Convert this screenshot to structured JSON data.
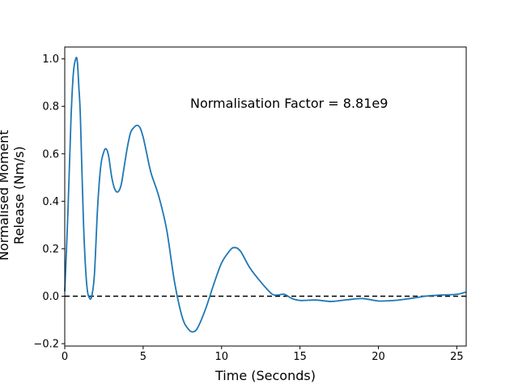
{
  "chart_data": {
    "type": "line",
    "xlabel": "Time (Seconds)",
    "ylabel_lines": [
      "Normalised Moment",
      "Release (Nm/s)"
    ],
    "annotation": "Normalisation Factor = 8.81e9",
    "xlim": [
      0,
      25.6
    ],
    "ylim": [
      -0.21,
      1.05
    ],
    "xticks": [
      0,
      5,
      10,
      15,
      20,
      25
    ],
    "xtick_labels": [
      "0",
      "5",
      "10",
      "15",
      "20",
      "25"
    ],
    "yticks": [
      -0.2,
      0.0,
      0.2,
      0.4,
      0.6,
      0.8,
      1.0
    ],
    "ytick_labels": [
      "−0.2",
      "0.0",
      "0.2",
      "0.4",
      "0.6",
      "0.8",
      "1.0"
    ],
    "grid": false,
    "reference_line": {
      "y": 0,
      "style": "dashed",
      "color": "#000000"
    },
    "series": [
      {
        "color": "#1f77b4",
        "x": [
          0,
          0.2,
          0.4,
          0.55,
          0.7,
          0.8,
          0.9,
          1.0,
          1.2,
          1.4,
          1.6,
          1.75,
          1.9,
          2.1,
          2.3,
          2.5,
          2.65,
          2.8,
          3.0,
          3.2,
          3.4,
          3.6,
          3.8,
          4.0,
          4.2,
          4.4,
          4.6,
          4.8,
          5.0,
          5.2,
          5.5,
          6.0,
          6.5,
          7.0,
          7.5,
          7.9,
          8.2,
          8.5,
          9.0,
          9.5,
          10.0,
          10.5,
          10.8,
          11.2,
          11.8,
          12.5,
          13.2,
          13.6,
          14.0,
          14.5,
          15.0,
          16.0,
          17.0,
          18.0,
          19.0,
          20.0,
          21.0,
          22.0,
          23.0,
          24.0,
          25.0,
          25.6
        ],
        "y": [
          0.02,
          0.35,
          0.75,
          0.94,
          1.0,
          0.99,
          0.88,
          0.75,
          0.3,
          0.05,
          -0.01,
          0.01,
          0.1,
          0.38,
          0.55,
          0.61,
          0.62,
          0.59,
          0.5,
          0.45,
          0.44,
          0.47,
          0.55,
          0.63,
          0.69,
          0.71,
          0.72,
          0.71,
          0.67,
          0.61,
          0.52,
          0.42,
          0.28,
          0.06,
          -0.09,
          -0.14,
          -0.15,
          -0.13,
          -0.05,
          0.05,
          0.14,
          0.19,
          0.205,
          0.19,
          0.12,
          0.06,
          0.01,
          0.005,
          0.008,
          -0.01,
          -0.018,
          -0.016,
          -0.022,
          -0.015,
          -0.01,
          -0.02,
          -0.018,
          -0.01,
          0.0,
          0.005,
          0.008,
          0.018
        ]
      }
    ]
  }
}
